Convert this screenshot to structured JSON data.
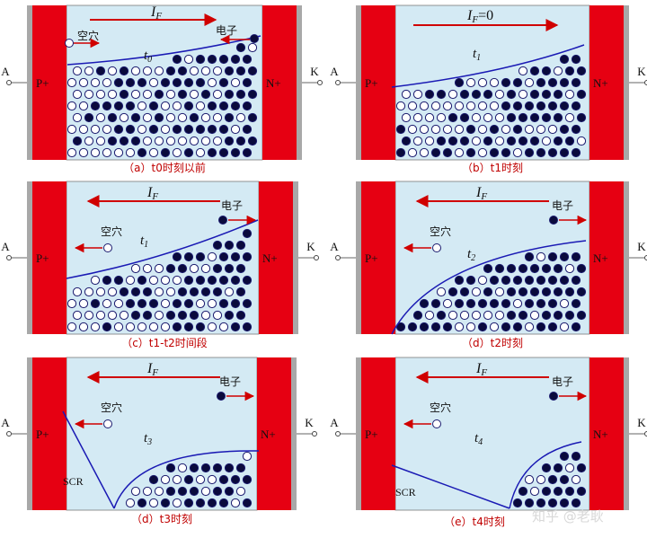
{
  "panels": [
    {
      "caption": "（a）t0时刻以前",
      "time_label": "t",
      "time_sub": "0",
      "current_label": "I",
      "current_sub": "F",
      "current_value": "",
      "hole_label": "空穴",
      "electron_label": "电子",
      "left_region": "P+",
      "right_region": "N+",
      "anode": "A",
      "cathode": "K",
      "scr_label": ""
    },
    {
      "caption": "（b）t1时刻",
      "time_label": "t",
      "time_sub": "1",
      "current_label": "I",
      "current_sub": "F",
      "current_value": "=0",
      "hole_label": "",
      "electron_label": "",
      "left_region": "P+",
      "right_region": "N+",
      "anode": "A",
      "cathode": "K",
      "scr_label": ""
    },
    {
      "caption": "（c）t1-t2时间段",
      "time_label": "t",
      "time_sub": "1",
      "current_label": "I",
      "current_sub": "F",
      "current_value": "",
      "hole_label": "空穴",
      "electron_label": "电子",
      "left_region": "P+",
      "right_region": "N+",
      "anode": "A",
      "cathode": "K",
      "scr_label": ""
    },
    {
      "caption": "（d）t2时刻",
      "time_label": "t",
      "time_sub": "2",
      "current_label": "I",
      "current_sub": "F",
      "current_value": "",
      "hole_label": "空穴",
      "electron_label": "电子",
      "left_region": "P+",
      "right_region": "N+",
      "anode": "A",
      "cathode": "K",
      "scr_label": ""
    },
    {
      "caption": "（d）t3时刻",
      "time_label": "t",
      "time_sub": "3",
      "current_label": "I",
      "current_sub": "F",
      "current_value": "",
      "hole_label": "空穴",
      "electron_label": "电子",
      "left_region": "P+",
      "right_region": "N+",
      "anode": "A",
      "cathode": "K",
      "scr_label": "SCR"
    },
    {
      "caption": "（e）t4时刻",
      "time_label": "t",
      "time_sub": "4",
      "current_label": "I",
      "current_sub": "F",
      "current_value": "",
      "hole_label": "空穴",
      "electron_label": "电子",
      "left_region": "P+",
      "right_region": "N+",
      "anode": "A",
      "cathode": "K",
      "scr_label": "SCR"
    }
  ],
  "watermark": "知乎 @老耿",
  "colors": {
    "region": "#e60012",
    "drift": "#d4eaf4",
    "contact": "#a8a8a8",
    "boundary": "#1a1ab4",
    "carrier": "#0a0a3c",
    "arrow": "#d00000",
    "caption": "#c00000"
  }
}
